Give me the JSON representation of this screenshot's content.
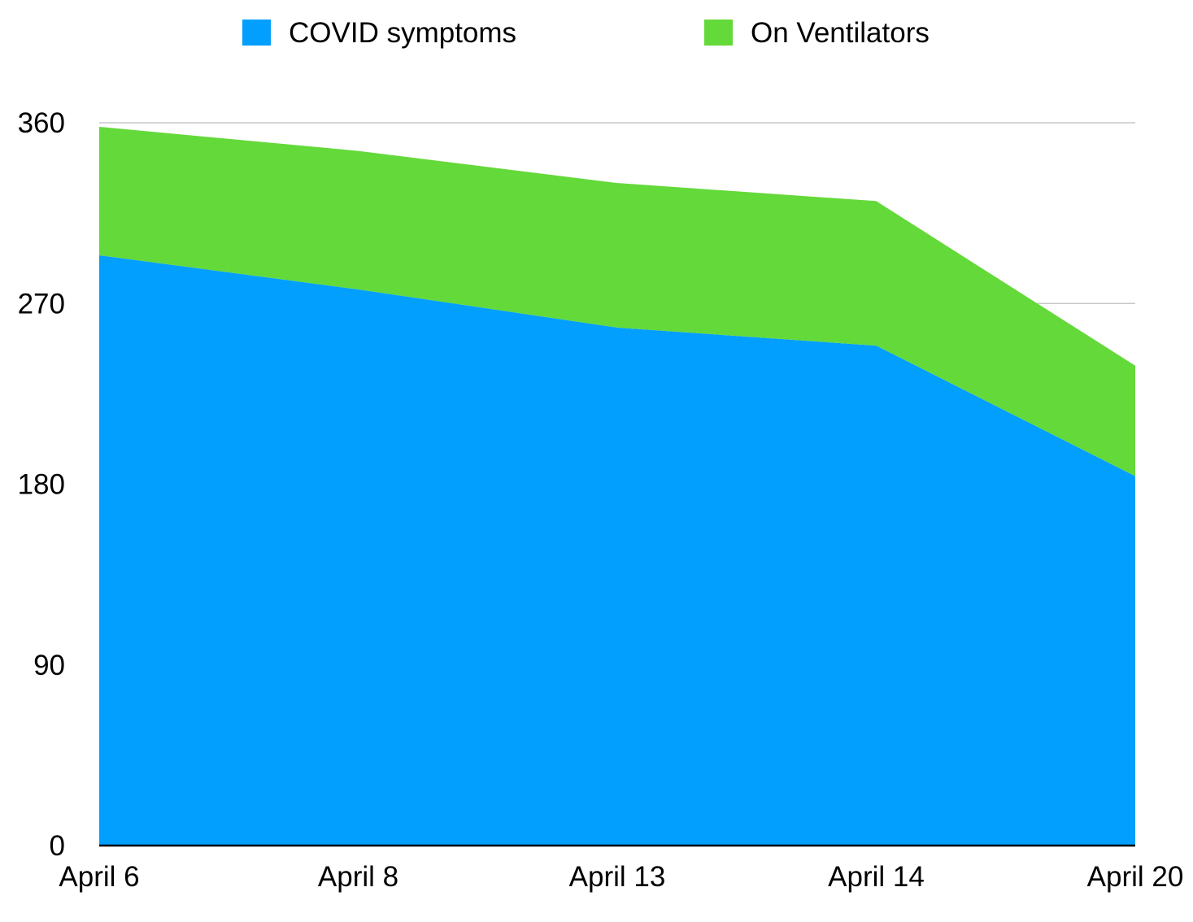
{
  "chart_data": {
    "type": "area",
    "stacked": true,
    "categories": [
      "April 6",
      "April 8",
      "April 13",
      "April 14",
      "April 20"
    ],
    "series": [
      {
        "name": "COVID symptoms",
        "color": "#039FFF",
        "values": [
          294,
          277,
          258,
          249,
          184
        ]
      },
      {
        "name": "On Ventilators",
        "color": "#64D93A",
        "values": [
          64,
          69,
          72,
          72,
          55
        ]
      }
    ],
    "ylim": [
      0,
      360
    ],
    "yticks": [
      "0",
      "90",
      "180",
      "270",
      "360"
    ],
    "grid": true,
    "legend_position": "top"
  }
}
